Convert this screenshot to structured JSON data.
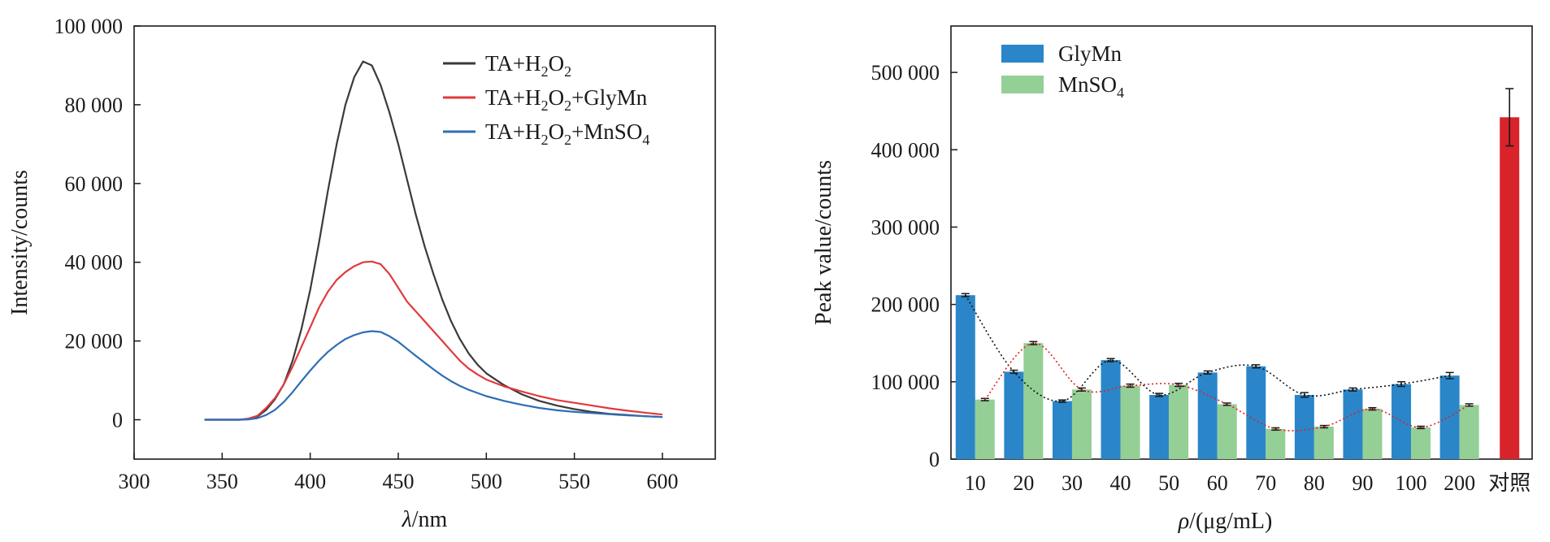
{
  "chart_data": [
    {
      "type": "line",
      "xlabel_symbol": "λ",
      "xlabel_unit": "/nm",
      "ylabel": "Intensity/counts",
      "xlim": [
        300,
        630
      ],
      "ylim": [
        -10000,
        100000
      ],
      "xticks": [
        300,
        350,
        400,
        450,
        500,
        550,
        600
      ],
      "xtick_labels": [
        "300",
        "350",
        "400",
        "450",
        "500",
        "550",
        "600"
      ],
      "yticks": [
        0,
        20000,
        40000,
        60000,
        80000,
        100000
      ],
      "ytick_labels": [
        "0",
        "20 000",
        "40 000",
        "60 000",
        "80 000",
        "100 000"
      ],
      "legend_position": "top-right",
      "series": [
        {
          "name": "TA+H2O2",
          "color": "#3a3a3a",
          "legend": [
            {
              "t": "TA+H"
            },
            {
              "t": "2",
              "sub": true
            },
            {
              "t": "O"
            },
            {
              "t": "2",
              "sub": true
            }
          ],
          "points": [
            [
              340,
              0
            ],
            [
              360,
              0
            ],
            [
              365,
              200
            ],
            [
              370,
              800
            ],
            [
              375,
              2500
            ],
            [
              380,
              5200
            ],
            [
              385,
              9000
            ],
            [
              390,
              15000
            ],
            [
              395,
              23000
            ],
            [
              400,
              33000
            ],
            [
              405,
              45000
            ],
            [
              410,
              58000
            ],
            [
              415,
              70000
            ],
            [
              420,
              80000
            ],
            [
              425,
              87000
            ],
            [
              430,
              91000
            ],
            [
              435,
              90000
            ],
            [
              440,
              85000
            ],
            [
              445,
              78000
            ],
            [
              450,
              70000
            ],
            [
              455,
              61000
            ],
            [
              460,
              52000
            ],
            [
              465,
              44000
            ],
            [
              470,
              37000
            ],
            [
              475,
              30500
            ],
            [
              480,
              25000
            ],
            [
              485,
              20500
            ],
            [
              490,
              16800
            ],
            [
              495,
              14000
            ],
            [
              500,
              11800
            ],
            [
              510,
              8800
            ],
            [
              520,
              6500
            ],
            [
              530,
              4800
            ],
            [
              540,
              3600
            ],
            [
              550,
              2700
            ],
            [
              560,
              2000
            ],
            [
              570,
              1500
            ],
            [
              580,
              1200
            ],
            [
              590,
              900
            ],
            [
              600,
              700
            ]
          ]
        },
        {
          "name": "TA+H2O2+GlyMn",
          "color": "#e03a3e",
          "legend": [
            {
              "t": "TA+H"
            },
            {
              "t": "2",
              "sub": true
            },
            {
              "t": "O"
            },
            {
              "t": "2",
              "sub": true
            },
            {
              "t": "+GlyMn"
            }
          ],
          "points": [
            [
              340,
              0
            ],
            [
              360,
              0
            ],
            [
              365,
              300
            ],
            [
              370,
              1000
            ],
            [
              375,
              3000
            ],
            [
              380,
              5500
            ],
            [
              385,
              9000
            ],
            [
              390,
              13500
            ],
            [
              395,
              18500
            ],
            [
              400,
              23500
            ],
            [
              405,
              28500
            ],
            [
              410,
              32500
            ],
            [
              415,
              35500
            ],
            [
              420,
              37500
            ],
            [
              425,
              39000
            ],
            [
              430,
              40000
            ],
            [
              435,
              40200
            ],
            [
              440,
              39500
            ],
            [
              445,
              37000
            ],
            [
              450,
              33500
            ],
            [
              455,
              30000
            ],
            [
              460,
              27500
            ],
            [
              465,
              25000
            ],
            [
              470,
              22500
            ],
            [
              475,
              20000
            ],
            [
              480,
              17500
            ],
            [
              485,
              15000
            ],
            [
              490,
              13000
            ],
            [
              495,
              11500
            ],
            [
              500,
              10200
            ],
            [
              510,
              8500
            ],
            [
              520,
              7200
            ],
            [
              530,
              6000
            ],
            [
              540,
              5000
            ],
            [
              550,
              4300
            ],
            [
              560,
              3600
            ],
            [
              570,
              2900
            ],
            [
              580,
              2300
            ],
            [
              590,
              1800
            ],
            [
              600,
              1300
            ]
          ]
        },
        {
          "name": "TA+H2O2+MnSO4",
          "color": "#2f6db5",
          "legend": [
            {
              "t": "TA+H"
            },
            {
              "t": "2",
              "sub": true
            },
            {
              "t": "O"
            },
            {
              "t": "2",
              "sub": true
            },
            {
              "t": "+MnSO"
            },
            {
              "t": "4",
              "sub": true
            }
          ],
          "points": [
            [
              340,
              0
            ],
            [
              360,
              0
            ],
            [
              365,
              100
            ],
            [
              370,
              400
            ],
            [
              375,
              1200
            ],
            [
              380,
              2500
            ],
            [
              385,
              4500
            ],
            [
              390,
              7000
            ],
            [
              395,
              9800
            ],
            [
              400,
              12500
            ],
            [
              405,
              15000
            ],
            [
              410,
              17200
            ],
            [
              415,
              19000
            ],
            [
              420,
              20500
            ],
            [
              425,
              21500
            ],
            [
              430,
              22200
            ],
            [
              435,
              22500
            ],
            [
              440,
              22300
            ],
            [
              445,
              21200
            ],
            [
              450,
              19800
            ],
            [
              455,
              18000
            ],
            [
              460,
              16200
            ],
            [
              465,
              14500
            ],
            [
              470,
              12800
            ],
            [
              475,
              11200
            ],
            [
              480,
              9800
            ],
            [
              485,
              8600
            ],
            [
              490,
              7600
            ],
            [
              495,
              6800
            ],
            [
              500,
              6000
            ],
            [
              510,
              4800
            ],
            [
              520,
              3800
            ],
            [
              530,
              3000
            ],
            [
              540,
              2400
            ],
            [
              550,
              2000
            ],
            [
              560,
              1700
            ],
            [
              570,
              1400
            ],
            [
              580,
              1100
            ],
            [
              590,
              900
            ],
            [
              600,
              700
            ]
          ]
        }
      ]
    },
    {
      "type": "bar",
      "xlabel_symbol": "ρ",
      "xlabel_unit": "/(μg/mL)",
      "ylabel": "Peak value/counts",
      "ylim": [
        0,
        560000
      ],
      "yticks": [
        0,
        100000,
        200000,
        300000,
        400000,
        500000
      ],
      "ytick_labels": [
        "0",
        "100 000",
        "200 000",
        "300 000",
        "400 000",
        "500 000"
      ],
      "categories": [
        "10",
        "20",
        "30",
        "40",
        "50",
        "60",
        "70",
        "80",
        "90",
        "100",
        "200"
      ],
      "control_label": "对照",
      "legend_position": "top-left",
      "series": [
        {
          "name": "GlyMn",
          "color": "#2a86c9",
          "legend": [
            {
              "t": "GlyMn"
            }
          ],
          "values": [
            212000,
            113000,
            75000,
            128000,
            83000,
            112000,
            120000,
            83000,
            90000,
            97000,
            108000
          ],
          "errors": [
            2000,
            2000,
            1500,
            2000,
            2000,
            2000,
            2000,
            3000,
            2000,
            3000,
            4000
          ],
          "trend_color": "#111111"
        },
        {
          "name": "MnSO4",
          "color": "#94cf96",
          "legend": [
            {
              "t": "MnSO"
            },
            {
              "t": "4",
              "sub": true
            }
          ],
          "values": [
            77000,
            150000,
            90000,
            95000,
            96000,
            71000,
            39000,
            42000,
            65000,
            41000,
            70000
          ],
          "errors": [
            1500,
            2000,
            2000,
            2000,
            2000,
            1500,
            1500,
            1500,
            1500,
            1500,
            1500
          ],
          "trend_color": "#e02020"
        }
      ],
      "control": {
        "value": 442000,
        "error": 37000,
        "color": "#d8232a"
      }
    }
  ]
}
